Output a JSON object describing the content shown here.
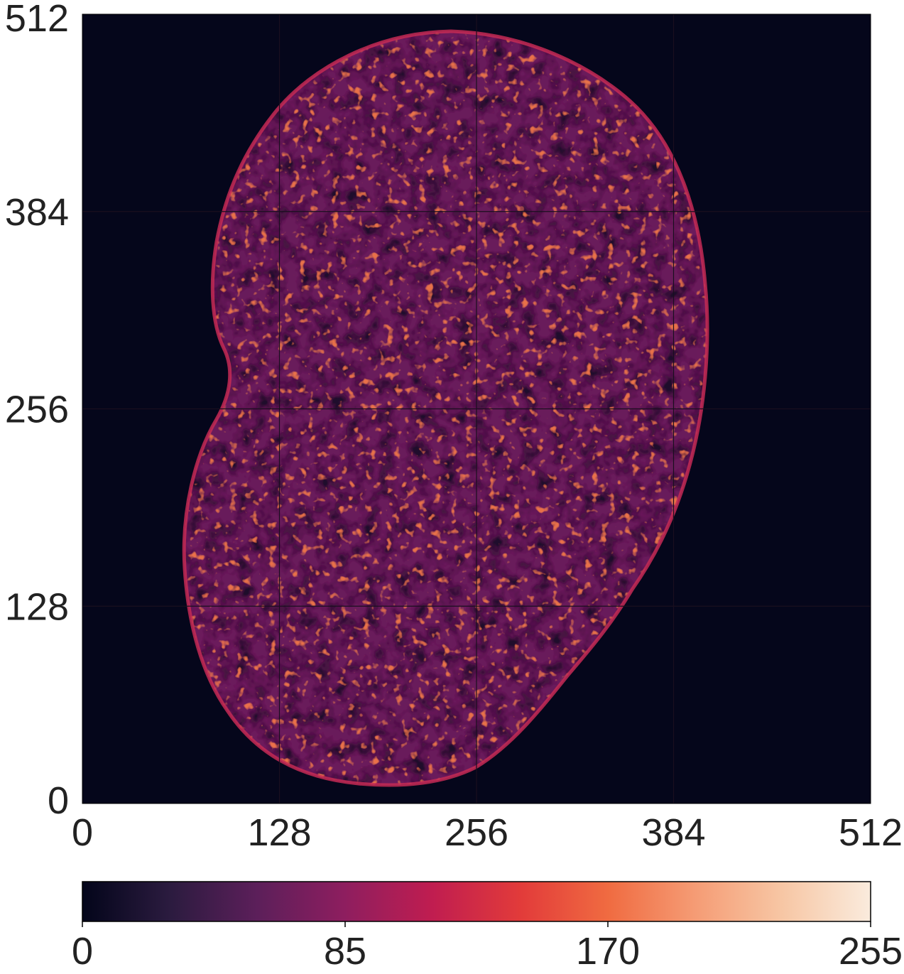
{
  "image": {
    "description_kind": "fluorescence micrograph of a cell nucleus rendered with a sequential colormap",
    "colormap": "rocket",
    "colormap_stops": [
      "#03051a",
      "#2b1b3f",
      "#5c1f5a",
      "#8e1e5f",
      "#c01d50",
      "#e23b3a",
      "#f06b41",
      "#f59c75",
      "#f7c7a5",
      "#faebdd"
    ],
    "background_color": "#05061b",
    "grid_color": "#1a0f1f"
  },
  "axes": {
    "x": {
      "range": [
        0,
        512
      ],
      "ticks": [
        {
          "value": 0,
          "label": "0"
        },
        {
          "value": 128,
          "label": "128"
        },
        {
          "value": 256,
          "label": "256"
        },
        {
          "value": 384,
          "label": "384"
        },
        {
          "value": 512,
          "label": "512"
        }
      ]
    },
    "y": {
      "range": [
        0,
        512
      ],
      "ticks": [
        {
          "value": 0,
          "label": "0"
        },
        {
          "value": 128,
          "label": "128"
        },
        {
          "value": 256,
          "label": "256"
        },
        {
          "value": 384,
          "label": "384"
        },
        {
          "value": 512,
          "label": "512"
        }
      ]
    },
    "grid": true
  },
  "colorbar": {
    "range": [
      0,
      255
    ],
    "orientation": "horizontal",
    "placement": "bottom",
    "ticks": [
      {
        "value": 0,
        "label": "0"
      },
      {
        "value": 85,
        "label": "85"
      },
      {
        "value": 170,
        "label": "170"
      },
      {
        "value": 255,
        "label": "255"
      }
    ]
  }
}
